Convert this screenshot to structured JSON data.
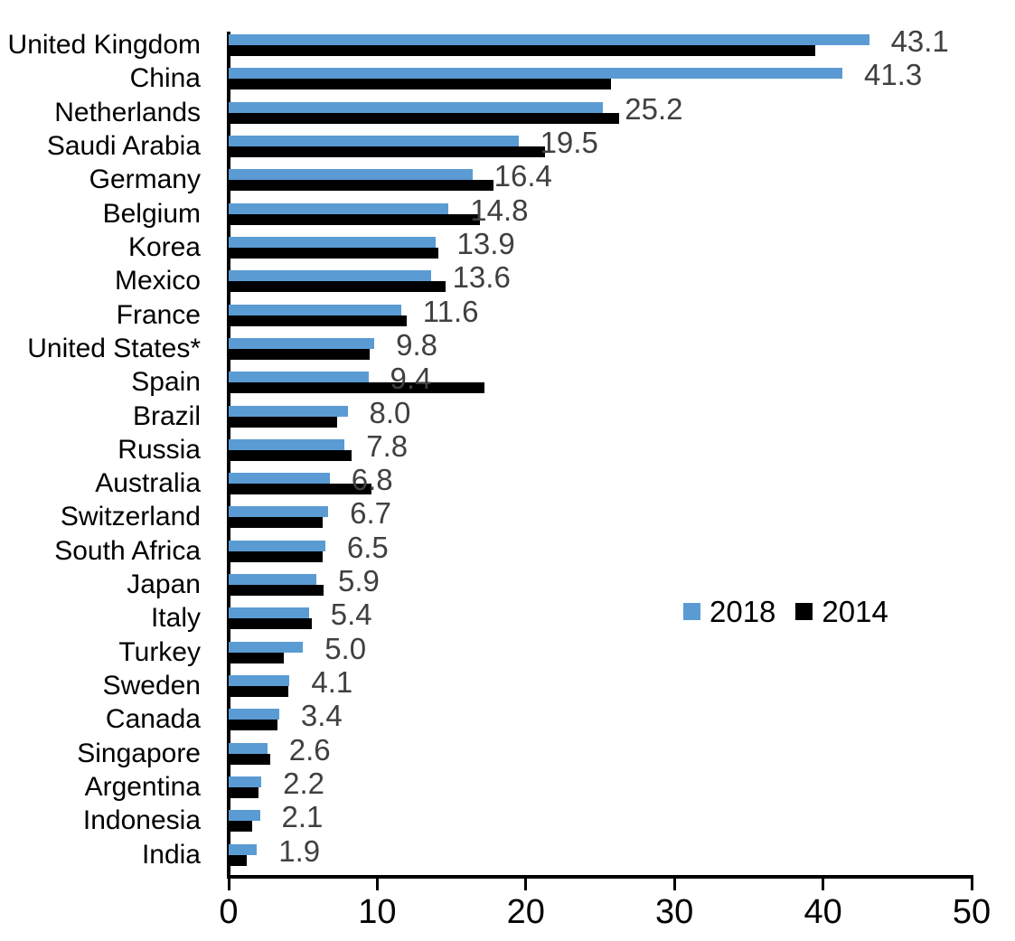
{
  "chart_data": {
    "type": "bar",
    "orientation": "horizontal",
    "title": "",
    "xlabel": "",
    "ylabel": "",
    "categories": [
      "United Kingdom",
      "China",
      "Netherlands",
      "Saudi Arabia",
      "Germany",
      "Belgium",
      "Korea",
      "Mexico",
      "France",
      "United States*",
      "Spain",
      "Brazil",
      "Russia",
      "Australia",
      "Switzerland",
      "South Africa",
      "Japan",
      "Italy",
      "Turkey",
      "Sweden",
      "Canada",
      "Singapore",
      "Argentina",
      "Indonesia",
      "India"
    ],
    "series": [
      {
        "name": "2018",
        "color": "#5A9BD4",
        "values": [
          43.1,
          41.3,
          25.2,
          19.5,
          16.4,
          14.8,
          13.9,
          13.6,
          11.6,
          9.8,
          9.4,
          8.0,
          7.8,
          6.8,
          6.7,
          6.5,
          5.9,
          5.4,
          5.0,
          4.1,
          3.4,
          2.6,
          2.2,
          2.1,
          1.9
        ]
      },
      {
        "name": "2014",
        "color": "#000000",
        "values": [
          39.5,
          25.7,
          26.3,
          21.3,
          17.8,
          16.9,
          14.1,
          14.6,
          12.0,
          9.5,
          17.2,
          7.3,
          8.3,
          9.6,
          6.3,
          6.3,
          6.4,
          5.6,
          3.7,
          4.0,
          3.3,
          2.8,
          2.0,
          1.6,
          1.2
        ]
      }
    ],
    "value_labels": {
      "labeled_series": "2018",
      "values": [
        "43.1",
        "41.3",
        "25.2",
        "19.5",
        "16.4",
        "14.8",
        "13.9",
        "13.6",
        "11.6",
        "9.8",
        "9.4",
        "8.0",
        "7.8",
        "6.8",
        "6.7",
        "6.5",
        "5.9",
        "5.4",
        "5.0",
        "4.1",
        "3.4",
        "2.6",
        "2.2",
        "2.1",
        "1.9"
      ],
      "color": "#404040"
    },
    "xlim": [
      0,
      50
    ],
    "xticks": [
      0,
      10,
      20,
      30,
      40,
      50
    ],
    "grid": false,
    "legend_position": "middle-right",
    "axis_color": "#000000"
  }
}
